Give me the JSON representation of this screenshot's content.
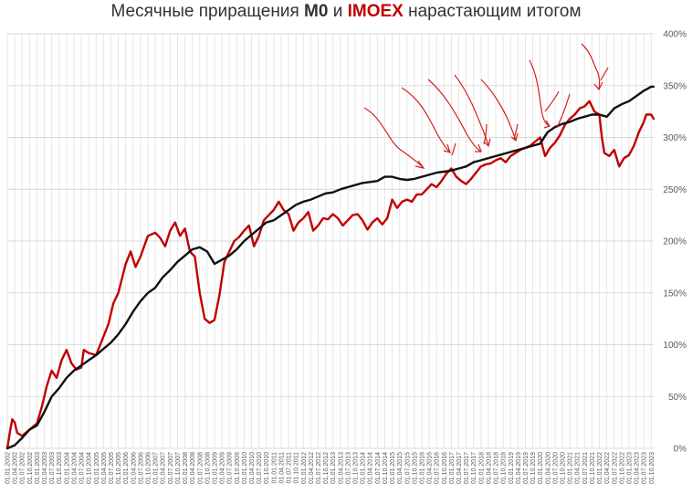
{
  "colors": {
    "m0": "#111111",
    "imoex": "#c00000",
    "annotation": "#d62020",
    "grid": "#d9d9d9",
    "text": "#595959"
  },
  "chart_data": {
    "type": "line",
    "title_parts": [
      "Месячные приращения ",
      "M0",
      " и ",
      "IMOEX",
      " нарастающим итогом"
    ],
    "x_start": "2002-01",
    "x_end": "2023-11",
    "x_tick_labels": [
      "01.01.2002",
      "01.04.2002",
      "01.07.2002",
      "01.10.2002",
      "01.01.2003",
      "01.04.2003",
      "01.07.2003",
      "01.10.2003",
      "01.01.2004",
      "01.04.2004",
      "01.07.2004",
      "01.10.2004",
      "01.01.2005",
      "01.04.2005",
      "01.07.2005",
      "01.10.2005",
      "01.01.2006",
      "01.04.2006",
      "01.07.2006",
      "01.10.2006",
      "01.01.2007",
      "01.04.2007",
      "01.07.2007",
      "01.10.2007",
      "01.01.2008",
      "01.04.2008",
      "01.07.2008",
      "01.10.2008",
      "01.01.2009",
      "01.04.2009",
      "01.07.2009",
      "01.10.2009",
      "01.01.2010",
      "01.04.2010",
      "01.07.2010",
      "01.10.2010",
      "01.01.2011",
      "01.04.2011",
      "01.07.2011",
      "01.10.2011",
      "01.01.2012",
      "01.04.2012",
      "01.07.2012",
      "01.10.2012",
      "01.01.2013",
      "01.04.2013",
      "01.07.2013",
      "01.10.2013",
      "01.01.2014",
      "01.04.2014",
      "01.07.2014",
      "01.10.2014",
      "01.01.2015",
      "01.04.2015",
      "01.07.2015",
      "01.10.2015",
      "01.01.2016",
      "01.04.2016",
      "01.07.2016",
      "01.10.2016",
      "01.01.2017",
      "01.04.2017",
      "01.07.2017",
      "01.10.2017",
      "01.01.2018",
      "01.04.2018",
      "01.07.2018",
      "01.10.2018",
      "01.01.2019",
      "01.04.2019",
      "01.07.2019",
      "01.10.2019",
      "01.01.2020",
      "01.04.2020",
      "01.07.2020",
      "01.10.2020",
      "01.01.2021",
      "01.04.2021",
      "01.07.2021",
      "01.10.2021",
      "01.01.2022",
      "01.04.2022",
      "01.07.2022",
      "01.10.2022",
      "01.01.2023",
      "01.04.2023",
      "01.07.2023",
      "01.10.2023"
    ],
    "y_tick_labels": [
      "0%",
      "50%",
      "100%",
      "150%",
      "200%",
      "250%",
      "300%",
      "350%",
      "400%"
    ],
    "ylim": [
      0,
      400
    ],
    "y_axis_side": "right",
    "grid": true,
    "series": [
      {
        "color": "#111111",
        "points": [
          [
            "2002-01",
            0
          ],
          [
            "2002-04",
            3
          ],
          [
            "2002-07",
            10
          ],
          [
            "2002-10",
            18
          ],
          [
            "2003-01",
            22
          ],
          [
            "2003-04",
            35
          ],
          [
            "2003-07",
            50
          ],
          [
            "2003-10",
            58
          ],
          [
            "2004-01",
            68
          ],
          [
            "2004-04",
            75
          ],
          [
            "2004-07",
            80
          ],
          [
            "2004-10",
            85
          ],
          [
            "2005-01",
            90
          ],
          [
            "2005-04",
            96
          ],
          [
            "2005-07",
            102
          ],
          [
            "2005-10",
            110
          ],
          [
            "2006-01",
            120
          ],
          [
            "2006-04",
            132
          ],
          [
            "2006-07",
            142
          ],
          [
            "2006-10",
            150
          ],
          [
            "2007-01",
            155
          ],
          [
            "2007-04",
            165
          ],
          [
            "2007-07",
            172
          ],
          [
            "2007-10",
            180
          ],
          [
            "2008-01",
            186
          ],
          [
            "2008-04",
            192
          ],
          [
            "2008-07",
            194
          ],
          [
            "2008-10",
            190
          ],
          [
            "2009-01",
            178
          ],
          [
            "2009-04",
            182
          ],
          [
            "2009-07",
            186
          ],
          [
            "2009-10",
            192
          ],
          [
            "2010-01",
            200
          ],
          [
            "2010-04",
            206
          ],
          [
            "2010-07",
            212
          ],
          [
            "2010-10",
            218
          ],
          [
            "2011-01",
            220
          ],
          [
            "2011-04",
            225
          ],
          [
            "2011-07",
            230
          ],
          [
            "2011-10",
            235
          ],
          [
            "2012-01",
            238
          ],
          [
            "2012-04",
            240
          ],
          [
            "2012-07",
            243
          ],
          [
            "2012-10",
            246
          ],
          [
            "2013-01",
            247
          ],
          [
            "2013-04",
            250
          ],
          [
            "2013-07",
            252
          ],
          [
            "2013-10",
            254
          ],
          [
            "2014-01",
            256
          ],
          [
            "2014-04",
            257
          ],
          [
            "2014-07",
            258
          ],
          [
            "2014-10",
            262
          ],
          [
            "2015-01",
            262
          ],
          [
            "2015-04",
            260
          ],
          [
            "2015-07",
            259
          ],
          [
            "2015-10",
            260
          ],
          [
            "2016-01",
            262
          ],
          [
            "2016-04",
            264
          ],
          [
            "2016-07",
            266
          ],
          [
            "2016-10",
            267
          ],
          [
            "2017-01",
            268
          ],
          [
            "2017-04",
            270
          ],
          [
            "2017-07",
            272
          ],
          [
            "2017-10",
            276
          ],
          [
            "2018-01",
            278
          ],
          [
            "2018-04",
            280
          ],
          [
            "2018-07",
            282
          ],
          [
            "2018-10",
            284
          ],
          [
            "2019-01",
            286
          ],
          [
            "2019-04",
            288
          ],
          [
            "2019-07",
            290
          ],
          [
            "2019-10",
            292
          ],
          [
            "2020-01",
            294
          ],
          [
            "2020-04",
            305
          ],
          [
            "2020-07",
            310
          ],
          [
            "2020-10",
            313
          ],
          [
            "2021-01",
            315
          ],
          [
            "2021-04",
            318
          ],
          [
            "2021-07",
            320
          ],
          [
            "2021-10",
            322
          ],
          [
            "2022-01",
            322
          ],
          [
            "2022-04",
            320
          ],
          [
            "2022-07",
            328
          ],
          [
            "2022-10",
            332
          ],
          [
            "2023-01",
            335
          ],
          [
            "2023-04",
            340
          ],
          [
            "2023-07",
            345
          ],
          [
            "2023-10",
            349
          ],
          [
            "2023-11",
            349
          ]
        ]
      },
      {
        "color": "#c00000",
        "points": [
          [
            "2002-01",
            0
          ],
          [
            "2002-02",
            15
          ],
          [
            "2002-03",
            28
          ],
          [
            "2002-04",
            25
          ],
          [
            "2002-05",
            15
          ],
          [
            "2002-07",
            12
          ],
          [
            "2002-10",
            18
          ],
          [
            "2003-01",
            24
          ],
          [
            "2003-03",
            40
          ],
          [
            "2003-05",
            60
          ],
          [
            "2003-07",
            75
          ],
          [
            "2003-09",
            68
          ],
          [
            "2003-11",
            85
          ],
          [
            "2004-01",
            95
          ],
          [
            "2004-03",
            82
          ],
          [
            "2004-05",
            76
          ],
          [
            "2004-07",
            78
          ],
          [
            "2004-08",
            95
          ],
          [
            "2004-10",
            92
          ],
          [
            "2005-01",
            90
          ],
          [
            "2005-04",
            108
          ],
          [
            "2005-06",
            120
          ],
          [
            "2005-08",
            140
          ],
          [
            "2005-10",
            150
          ],
          [
            "2006-01",
            178
          ],
          [
            "2006-03",
            190
          ],
          [
            "2006-05",
            175
          ],
          [
            "2006-07",
            185
          ],
          [
            "2006-10",
            205
          ],
          [
            "2007-01",
            208
          ],
          [
            "2007-03",
            203
          ],
          [
            "2007-05",
            195
          ],
          [
            "2007-07",
            210
          ],
          [
            "2007-09",
            218
          ],
          [
            "2007-11",
            205
          ],
          [
            "2008-01",
            212
          ],
          [
            "2008-03",
            190
          ],
          [
            "2008-05",
            185
          ],
          [
            "2008-07",
            150
          ],
          [
            "2008-09",
            125
          ],
          [
            "2008-11",
            121
          ],
          [
            "2009-01",
            124
          ],
          [
            "2009-03",
            148
          ],
          [
            "2009-05",
            180
          ],
          [
            "2009-07",
            190
          ],
          [
            "2009-09",
            200
          ],
          [
            "2009-11",
            204
          ],
          [
            "2010-01",
            210
          ],
          [
            "2010-03",
            215
          ],
          [
            "2010-05",
            195
          ],
          [
            "2010-07",
            205
          ],
          [
            "2010-09",
            220
          ],
          [
            "2010-11",
            225
          ],
          [
            "2011-01",
            230
          ],
          [
            "2011-03",
            238
          ],
          [
            "2011-05",
            230
          ],
          [
            "2011-07",
            226
          ],
          [
            "2011-09",
            210
          ],
          [
            "2011-11",
            218
          ],
          [
            "2012-01",
            222
          ],
          [
            "2012-03",
            228
          ],
          [
            "2012-05",
            210
          ],
          [
            "2012-07",
            215
          ],
          [
            "2012-09",
            222
          ],
          [
            "2012-11",
            221
          ],
          [
            "2013-01",
            226
          ],
          [
            "2013-03",
            222
          ],
          [
            "2013-05",
            215
          ],
          [
            "2013-07",
            220
          ],
          [
            "2013-09",
            225
          ],
          [
            "2013-11",
            226
          ],
          [
            "2014-01",
            220
          ],
          [
            "2014-03",
            211
          ],
          [
            "2014-05",
            218
          ],
          [
            "2014-07",
            222
          ],
          [
            "2014-09",
            216
          ],
          [
            "2014-11",
            222
          ],
          [
            "2015-01",
            240
          ],
          [
            "2015-03",
            232
          ],
          [
            "2015-05",
            238
          ],
          [
            "2015-07",
            240
          ],
          [
            "2015-09",
            238
          ],
          [
            "2015-11",
            245
          ],
          [
            "2016-01",
            245
          ],
          [
            "2016-03",
            250
          ],
          [
            "2016-05",
            255
          ],
          [
            "2016-07",
            252
          ],
          [
            "2016-09",
            258
          ],
          [
            "2016-11",
            265
          ],
          [
            "2017-01",
            270
          ],
          [
            "2017-03",
            262
          ],
          [
            "2017-05",
            258
          ],
          [
            "2017-07",
            255
          ],
          [
            "2017-09",
            260
          ],
          [
            "2017-11",
            266
          ],
          [
            "2018-01",
            272
          ],
          [
            "2018-03",
            274
          ],
          [
            "2018-05",
            275
          ],
          [
            "2018-07",
            278
          ],
          [
            "2018-09",
            280
          ],
          [
            "2018-11",
            276
          ],
          [
            "2019-01",
            282
          ],
          [
            "2019-03",
            285
          ],
          [
            "2019-05",
            288
          ],
          [
            "2019-07",
            290
          ],
          [
            "2019-09",
            292
          ],
          [
            "2019-11",
            296
          ],
          [
            "2020-01",
            300
          ],
          [
            "2020-03",
            282
          ],
          [
            "2020-05",
            290
          ],
          [
            "2020-07",
            295
          ],
          [
            "2020-09",
            302
          ],
          [
            "2020-11",
            312
          ],
          [
            "2021-01",
            318
          ],
          [
            "2021-03",
            322
          ],
          [
            "2021-05",
            328
          ],
          [
            "2021-07",
            330
          ],
          [
            "2021-09",
            335
          ],
          [
            "2021-11",
            325
          ],
          [
            "2022-01",
            322
          ],
          [
            "2022-02",
            300
          ],
          [
            "2022-03",
            285
          ],
          [
            "2022-05",
            282
          ],
          [
            "2022-07",
            288
          ],
          [
            "2022-09",
            272
          ],
          [
            "2022-11",
            280
          ],
          [
            "2023-01",
            283
          ],
          [
            "2023-03",
            292
          ],
          [
            "2023-05",
            305
          ],
          [
            "2023-07",
            315
          ],
          [
            "2023-08",
            322
          ],
          [
            "2023-10",
            322
          ],
          [
            "2023-11",
            318
          ]
        ]
      }
    ]
  }
}
